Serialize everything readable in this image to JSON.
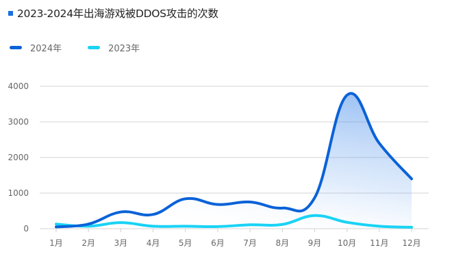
{
  "header": {
    "title": "2023-2024年出海游戏被DDOS攻击的次数"
  },
  "legend": [
    {
      "label": "2024年",
      "color": "#0a62d8"
    },
    {
      "label": "2023年",
      "color": "#19d3f5"
    }
  ],
  "chart_data": {
    "type": "line",
    "title": "2023-2024年出海游戏被DDOS攻击的次数",
    "xlabel": "",
    "ylabel": "",
    "categories": [
      "1月",
      "2月",
      "3月",
      "4月",
      "5月",
      "6月",
      "7月",
      "8月",
      "9月",
      "10月",
      "11月",
      "12月"
    ],
    "series": [
      {
        "name": "2024年",
        "color": "#0a62d8",
        "area": true,
        "values": [
          50,
          130,
          470,
          400,
          840,
          680,
          750,
          580,
          870,
          3750,
          2400,
          1400
        ]
      },
      {
        "name": "2023年",
        "color": "#19d3f5",
        "area": false,
        "values": [
          130,
          70,
          170,
          70,
          70,
          60,
          110,
          120,
          370,
          180,
          70,
          40
        ]
      }
    ],
    "ylim": [
      0,
      4000
    ],
    "yticks": [
      0,
      1000,
      2000,
      3000,
      4000
    ],
    "grid": true,
    "legend_position": "top-left"
  }
}
